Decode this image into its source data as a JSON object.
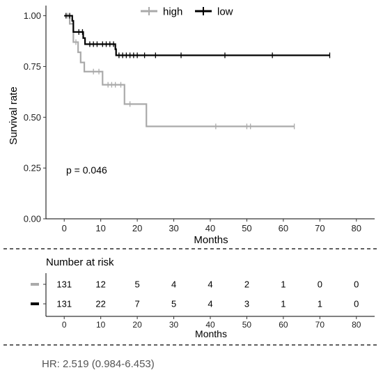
{
  "chart_data": {
    "type": "line",
    "subtype": "kaplan-meier",
    "xlabel": "Months",
    "ylabel": "Survival rate",
    "xlim": [
      -5,
      85
    ],
    "ylim": [
      0,
      1.05
    ],
    "xticks": [
      0,
      10,
      20,
      30,
      40,
      50,
      60,
      70,
      80
    ],
    "yticks": [
      0.0,
      0.25,
      0.5,
      0.75,
      1.0
    ],
    "ytick_labels": [
      "0.00",
      "0.25",
      "0.50",
      "0.75",
      "1.00"
    ],
    "legend_position": "top",
    "pvalue_text": "p = 0.046",
    "series": [
      {
        "name": "high",
        "color": "#aaaaaa",
        "steps": [
          [
            0,
            1.0
          ],
          [
            1.5,
            0.96
          ],
          [
            2.5,
            0.87
          ],
          [
            3.8,
            0.82
          ],
          [
            4.5,
            0.77
          ],
          [
            5.5,
            0.725
          ],
          [
            10.5,
            0.66
          ],
          [
            16.5,
            0.565
          ],
          [
            22.5,
            0.455
          ],
          [
            63,
            0.455
          ]
        ],
        "censor_x": [
          1.0,
          3.2,
          8,
          9.5,
          12,
          13,
          14,
          15.5,
          18,
          41.5,
          50,
          51,
          63
        ]
      },
      {
        "name": "low",
        "color": "#000000",
        "steps": [
          [
            0,
            1.0
          ],
          [
            2.2,
            0.975
          ],
          [
            2.5,
            0.92
          ],
          [
            5.2,
            0.89
          ],
          [
            5.7,
            0.86
          ],
          [
            14,
            0.835
          ],
          [
            14.2,
            0.805
          ],
          [
            72.7,
            0.805
          ]
        ],
        "censor_x": [
          0.5,
          1.5,
          4,
          5,
          7,
          8,
          9,
          10.5,
          11.5,
          12.5,
          13.5,
          15,
          16,
          17,
          18,
          19,
          20,
          22,
          25,
          32,
          44,
          57,
          72.7
        ]
      }
    ]
  },
  "risk_table": {
    "title": "Number at risk",
    "xlabel": "Months",
    "times": [
      0,
      10,
      20,
      30,
      40,
      50,
      60,
      70,
      80
    ],
    "tick_labels": [
      "0",
      "10",
      "20",
      "30",
      "40",
      "50",
      "60",
      "70",
      "80"
    ],
    "rows": [
      {
        "color": "#aaaaaa",
        "values": [
          "131",
          "12",
          "5",
          "4",
          "4",
          "2",
          "1",
          "0",
          "0"
        ]
      },
      {
        "color": "#000000",
        "values": [
          "131",
          "22",
          "7",
          "5",
          "4",
          "3",
          "1",
          "1",
          "0"
        ]
      }
    ]
  },
  "hr_text": "HR: 2.519 (0.984-6.453)"
}
